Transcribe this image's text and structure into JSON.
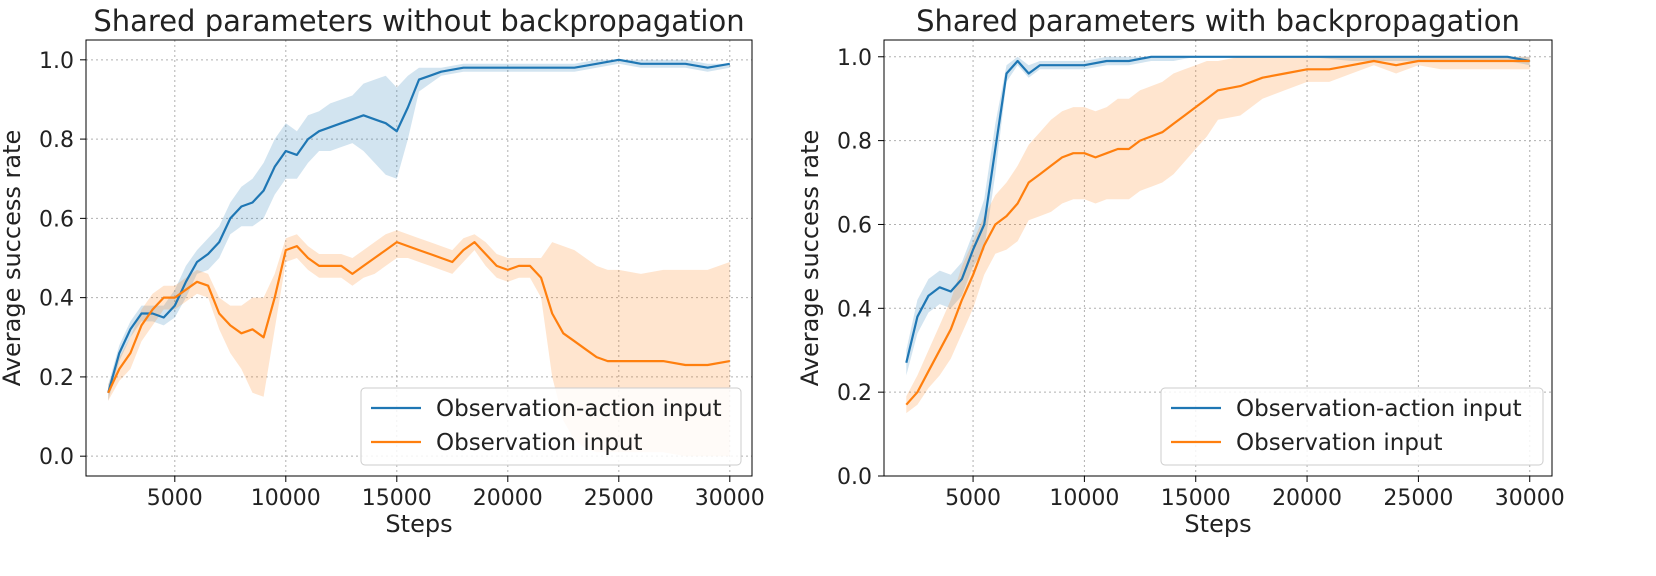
{
  "chart_data": [
    {
      "type": "line",
      "title": "Shared parameters without backpropagation",
      "xlabel": "Steps",
      "ylabel": "Average success rate",
      "xlim": [
        1000,
        31000
      ],
      "ylim": [
        -0.05,
        1.05
      ],
      "xticks": [
        5000,
        10000,
        15000,
        20000,
        25000,
        30000
      ],
      "xtick_labels": [
        "5000",
        "10000",
        "15000",
        "20000",
        "25000",
        "30000"
      ],
      "yticks": [
        0.0,
        0.2,
        0.4,
        0.6,
        0.8,
        1.0
      ],
      "ytick_labels": [
        "0.0",
        "0.2",
        "0.4",
        "0.6",
        "0.8",
        "1.0"
      ],
      "grid": true,
      "legend_position": "lower-right",
      "series": [
        {
          "name": "Observation-action input",
          "color": "#1f77b4",
          "x": [
            2000,
            2500,
            3000,
            3500,
            4000,
            4500,
            5000,
            5500,
            6000,
            6500,
            7000,
            7500,
            8000,
            8500,
            9000,
            9500,
            10000,
            10500,
            11000,
            11500,
            12000,
            12500,
            13000,
            13500,
            14000,
            14500,
            15000,
            15500,
            16000,
            16500,
            17000,
            18000,
            19000,
            20000,
            21000,
            22000,
            23000,
            24000,
            25000,
            26000,
            27000,
            28000,
            29000,
            30000
          ],
          "y": [
            0.16,
            0.26,
            0.32,
            0.36,
            0.36,
            0.35,
            0.38,
            0.44,
            0.49,
            0.51,
            0.54,
            0.6,
            0.63,
            0.64,
            0.67,
            0.73,
            0.77,
            0.76,
            0.8,
            0.82,
            0.83,
            0.84,
            0.85,
            0.86,
            0.85,
            0.84,
            0.82,
            0.88,
            0.95,
            0.96,
            0.97,
            0.98,
            0.98,
            0.98,
            0.98,
            0.98,
            0.98,
            0.99,
            1.0,
            0.99,
            0.99,
            0.99,
            0.98,
            0.99
          ],
          "upper": [
            0.18,
            0.28,
            0.34,
            0.38,
            0.38,
            0.38,
            0.42,
            0.48,
            0.52,
            0.55,
            0.58,
            0.64,
            0.68,
            0.7,
            0.74,
            0.8,
            0.84,
            0.82,
            0.86,
            0.87,
            0.89,
            0.9,
            0.91,
            0.94,
            0.95,
            0.96,
            0.93,
            0.96,
            0.98,
            0.98,
            0.98,
            0.99,
            0.99,
            0.99,
            0.99,
            0.99,
            0.99,
            1.0,
            1.0,
            1.0,
            1.0,
            1.0,
            0.99,
            0.99
          ],
          "lower": [
            0.14,
            0.24,
            0.3,
            0.34,
            0.34,
            0.33,
            0.35,
            0.4,
            0.46,
            0.47,
            0.5,
            0.56,
            0.58,
            0.58,
            0.6,
            0.66,
            0.7,
            0.7,
            0.74,
            0.77,
            0.77,
            0.78,
            0.79,
            0.77,
            0.74,
            0.71,
            0.7,
            0.8,
            0.92,
            0.94,
            0.96,
            0.97,
            0.97,
            0.97,
            0.97,
            0.97,
            0.97,
            0.98,
            0.99,
            0.98,
            0.98,
            0.98,
            0.97,
            0.98
          ]
        },
        {
          "name": "Observation input",
          "color": "#ff7f0e",
          "x": [
            2000,
            2500,
            3000,
            3500,
            4000,
            4500,
            5000,
            5500,
            6000,
            6500,
            7000,
            7500,
            8000,
            8500,
            9000,
            9500,
            10000,
            10500,
            11000,
            11500,
            12000,
            12500,
            13000,
            13500,
            14000,
            14500,
            15000,
            15500,
            16000,
            16500,
            17000,
            17500,
            18000,
            18500,
            19000,
            19500,
            20000,
            20500,
            21000,
            21500,
            22000,
            22500,
            23000,
            23500,
            24000,
            24500,
            25000,
            26000,
            27000,
            28000,
            29000,
            30000
          ],
          "y": [
            0.16,
            0.22,
            0.26,
            0.33,
            0.37,
            0.4,
            0.4,
            0.42,
            0.44,
            0.43,
            0.36,
            0.33,
            0.31,
            0.32,
            0.3,
            0.4,
            0.52,
            0.53,
            0.5,
            0.48,
            0.48,
            0.48,
            0.46,
            0.48,
            0.5,
            0.52,
            0.54,
            0.53,
            0.52,
            0.51,
            0.5,
            0.49,
            0.52,
            0.54,
            0.51,
            0.48,
            0.47,
            0.48,
            0.48,
            0.45,
            0.36,
            0.31,
            0.29,
            0.27,
            0.25,
            0.24,
            0.24,
            0.24,
            0.24,
            0.23,
            0.23,
            0.24
          ],
          "upper": [
            0.18,
            0.25,
            0.3,
            0.37,
            0.41,
            0.43,
            0.43,
            0.45,
            0.47,
            0.46,
            0.4,
            0.38,
            0.38,
            0.4,
            0.4,
            0.46,
            0.55,
            0.56,
            0.53,
            0.51,
            0.51,
            0.51,
            0.5,
            0.52,
            0.54,
            0.56,
            0.57,
            0.56,
            0.55,
            0.54,
            0.53,
            0.52,
            0.55,
            0.56,
            0.54,
            0.51,
            0.5,
            0.5,
            0.5,
            0.5,
            0.54,
            0.53,
            0.52,
            0.5,
            0.48,
            0.47,
            0.47,
            0.46,
            0.47,
            0.47,
            0.47,
            0.49
          ],
          "lower": [
            0.14,
            0.19,
            0.22,
            0.29,
            0.33,
            0.37,
            0.37,
            0.39,
            0.41,
            0.4,
            0.32,
            0.26,
            0.22,
            0.16,
            0.15,
            0.32,
            0.49,
            0.5,
            0.47,
            0.45,
            0.45,
            0.45,
            0.43,
            0.45,
            0.46,
            0.48,
            0.5,
            0.5,
            0.49,
            0.48,
            0.47,
            0.46,
            0.49,
            0.52,
            0.48,
            0.45,
            0.44,
            0.45,
            0.45,
            0.4,
            0.2,
            0.09,
            0.04,
            0.02,
            0.01,
            0.01,
            0.01,
            0.01,
            0.01,
            0.0,
            0.0,
            0.0
          ]
        }
      ]
    },
    {
      "type": "line",
      "title": "Shared parameters with backpropagation",
      "xlabel": "Steps",
      "ylabel": "Average success rate",
      "xlim": [
        1000,
        31000
      ],
      "ylim": [
        0.0,
        1.04
      ],
      "xticks": [
        5000,
        10000,
        15000,
        20000,
        25000,
        30000
      ],
      "xtick_labels": [
        "5000",
        "10000",
        "15000",
        "20000",
        "25000",
        "30000"
      ],
      "yticks": [
        0.0,
        0.2,
        0.4,
        0.6,
        0.8,
        1.0
      ],
      "ytick_labels": [
        "0.0",
        "0.2",
        "0.4",
        "0.6",
        "0.8",
        "1.0"
      ],
      "grid": true,
      "legend_position": "lower-right",
      "series": [
        {
          "name": "Observation-action input",
          "color": "#1f77b4",
          "x": [
            2000,
            2500,
            3000,
            3500,
            4000,
            4500,
            5000,
            5500,
            6000,
            6500,
            7000,
            7500,
            8000,
            9000,
            10000,
            11000,
            12000,
            13000,
            14000,
            15000,
            16000,
            17000,
            18000,
            19000,
            20000,
            22000,
            24000,
            26000,
            28000,
            29000,
            30000
          ],
          "y": [
            0.27,
            0.38,
            0.43,
            0.45,
            0.44,
            0.47,
            0.54,
            0.6,
            0.78,
            0.96,
            0.99,
            0.96,
            0.98,
            0.98,
            0.98,
            0.99,
            0.99,
            1.0,
            1.0,
            1.0,
            1.0,
            1.0,
            1.0,
            1.0,
            1.0,
            1.0,
            1.0,
            1.0,
            1.0,
            1.0,
            0.99
          ],
          "upper": [
            0.3,
            0.42,
            0.47,
            0.49,
            0.48,
            0.51,
            0.58,
            0.66,
            0.84,
            0.98,
            1.0,
            0.98,
            0.99,
            0.99,
            0.99,
            1.0,
            1.0,
            1.0,
            1.0,
            1.0,
            1.0,
            1.0,
            1.0,
            1.0,
            1.0,
            1.0,
            1.0,
            1.0,
            1.0,
            1.0,
            1.0
          ],
          "lower": [
            0.24,
            0.34,
            0.39,
            0.41,
            0.4,
            0.43,
            0.5,
            0.54,
            0.72,
            0.94,
            0.98,
            0.95,
            0.97,
            0.97,
            0.97,
            0.98,
            0.98,
            0.99,
            0.99,
            1.0,
            1.0,
            1.0,
            1.0,
            1.0,
            1.0,
            0.99,
            0.99,
            0.99,
            0.99,
            0.99,
            0.98
          ]
        },
        {
          "name": "Observation input",
          "color": "#ff7f0e",
          "x": [
            2000,
            2500,
            3000,
            3500,
            4000,
            4500,
            5000,
            5500,
            6000,
            6500,
            7000,
            7500,
            8000,
            8500,
            9000,
            9500,
            10000,
            10500,
            11000,
            11500,
            12000,
            12500,
            13000,
            13500,
            14000,
            14500,
            15000,
            15500,
            16000,
            17000,
            18000,
            19000,
            20000,
            21000,
            22000,
            23000,
            24000,
            25000,
            26000,
            27000,
            28000,
            29000,
            30000
          ],
          "y": [
            0.17,
            0.2,
            0.25,
            0.3,
            0.35,
            0.42,
            0.48,
            0.55,
            0.6,
            0.62,
            0.65,
            0.7,
            0.72,
            0.74,
            0.76,
            0.77,
            0.77,
            0.76,
            0.77,
            0.78,
            0.78,
            0.8,
            0.81,
            0.82,
            0.84,
            0.86,
            0.88,
            0.9,
            0.92,
            0.93,
            0.95,
            0.96,
            0.97,
            0.97,
            0.98,
            0.99,
            0.98,
            0.99,
            0.99,
            0.99,
            0.99,
            0.99,
            0.99
          ],
          "upper": [
            0.19,
            0.24,
            0.3,
            0.36,
            0.42,
            0.5,
            0.56,
            0.62,
            0.67,
            0.7,
            0.74,
            0.79,
            0.82,
            0.85,
            0.87,
            0.88,
            0.88,
            0.87,
            0.88,
            0.9,
            0.9,
            0.92,
            0.93,
            0.94,
            0.96,
            0.97,
            0.98,
            0.99,
            0.99,
            1.0,
            1.0,
            1.0,
            1.0,
            1.0,
            1.0,
            1.0,
            1.0,
            1.0,
            1.0,
            1.0,
            1.0,
            1.0,
            1.0
          ],
          "lower": [
            0.15,
            0.17,
            0.21,
            0.24,
            0.28,
            0.34,
            0.4,
            0.48,
            0.53,
            0.54,
            0.56,
            0.61,
            0.62,
            0.63,
            0.65,
            0.66,
            0.66,
            0.65,
            0.66,
            0.66,
            0.66,
            0.68,
            0.69,
            0.7,
            0.72,
            0.75,
            0.78,
            0.81,
            0.85,
            0.86,
            0.9,
            0.92,
            0.94,
            0.94,
            0.96,
            0.98,
            0.96,
            0.98,
            0.97,
            0.97,
            0.97,
            0.97,
            0.97
          ]
        }
      ]
    }
  ]
}
